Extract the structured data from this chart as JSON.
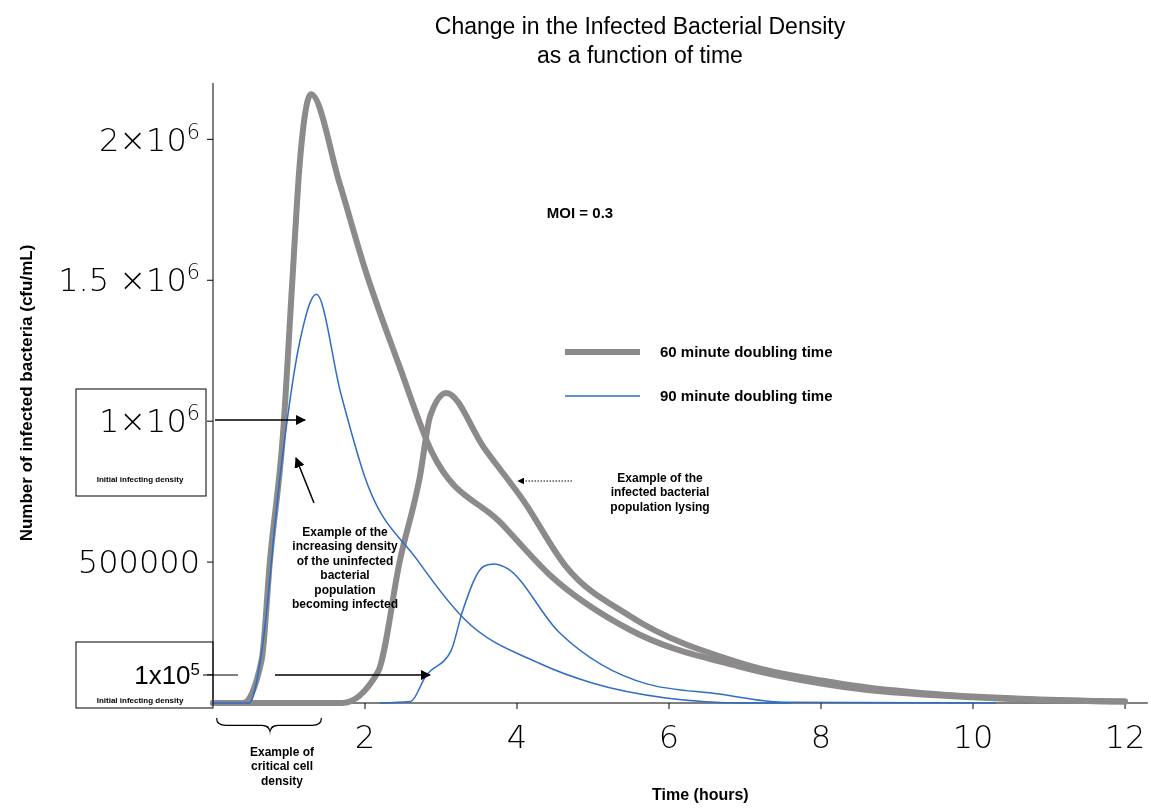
{
  "chart_data": {
    "type": "line",
    "title": "Change in the Infected Bacterial Density\nas a function of time",
    "xlabel": "Time (hours)",
    "ylabel": "Number of infected bacteria (cfu/mL)",
    "xlim": [
      0,
      12.3
    ],
    "xticks": [
      2,
      4,
      6,
      8,
      10,
      12
    ],
    "ylim": [
      0,
      2200000
    ],
    "yticks": [
      {
        "value": 100000,
        "label": "1x10$^{5}$"
      },
      {
        "value": 500000,
        "label": "500000"
      },
      {
        "value": 1000000,
        "label": "1×10$^{6}$"
      },
      {
        "value": 1500000,
        "label": "1.5 ×10$^{6}$"
      },
      {
        "value": 2000000,
        "label": "2×10$^{6}$"
      }
    ],
    "series": [
      {
        "name": "60 minute doubling time",
        "color": "#8c8a8a",
        "x": [
          0,
          0.4,
          0.64,
          0.75,
          0.92,
          1.04,
          1.14,
          1.29,
          1.67,
          2.0,
          2.46,
          2.88,
          3.79,
          4.45,
          5.49,
          6.9,
          8.3,
          10,
          12
        ],
        "values": [
          0,
          0,
          152000,
          507000,
          950000,
          1480000,
          1910000,
          2160000,
          1840000,
          1540000,
          1190000,
          890000,
          638000,
          450000,
          259000,
          131000,
          57000,
          20000,
          5000
        ]
      },
      {
        "color": "#8c8a8a",
        "x": [
          0,
          1.7,
          2.17,
          2.46,
          2.72,
          2.86,
          3.07,
          3.57,
          4.08,
          4.64,
          5.49,
          6.9,
          8.3,
          9.5,
          12
        ],
        "values": [
          0,
          0,
          110000,
          507000,
          800000,
          1020000,
          1100000,
          904000,
          720000,
          486000,
          308000,
          145000,
          67000,
          32000,
          5000
        ]
      },
      {
        "name": "90 minute doubling time",
        "color": "#2f6cc6",
        "x": [
          0,
          0.48,
          0.64,
          0.88,
          1.14,
          1.36,
          1.68,
          2.0,
          2.69,
          3.3,
          4.3,
          5.0,
          5.96,
          7.0,
          7.6
        ],
        "values": [
          0,
          0,
          180000,
          800000,
          1280000,
          1450000,
          1100000,
          800000,
          507000,
          300000,
          140000,
          70000,
          18000,
          0,
          0
        ]
      },
      {
        "color": "#2f6cc6",
        "x": [
          2.2,
          2.6,
          2.8,
          3.13,
          3.28,
          3.57,
          3.7,
          3.84,
          4.55,
          5.72,
          6.66,
          7.5,
          10.3
        ],
        "values": [
          0,
          5000,
          96000,
          184000,
          323000,
          486000,
          493000,
          482000,
          252000,
          67000,
          32000,
          3000,
          0
        ]
      }
    ],
    "legend": "right",
    "annotations": [
      "MOI = 0.3",
      "Initial infecting density",
      "Initial infecting density",
      "Example of the increasing density of the uninfected bacterial population becoming infected",
      "Example of the infected bacterial population lysing",
      "Example of critical cell density"
    ]
  }
}
